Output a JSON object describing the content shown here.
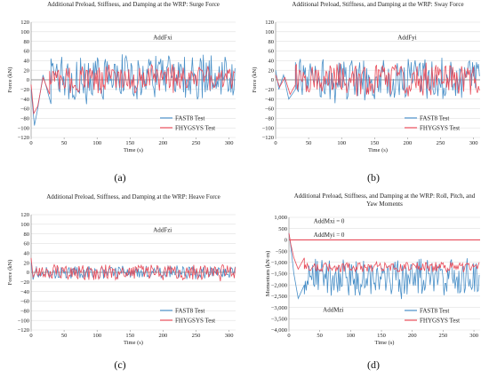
{
  "colors": {
    "fast8": "#4a90c8",
    "fhygsys": "#e84c5a",
    "grid": "#d9d9d9",
    "axis": "#7f7f7f"
  },
  "panel_labels": [
    "(a)",
    "(b)",
    "(c)",
    "(d)"
  ],
  "chart_data": [
    {
      "type": "line",
      "title": "Additional Preload, Stiffness, and Damping at the WRP: Surge Force",
      "title_lines": [
        "Additional Preload, Stiffness, and Damping at the WRP: Surge Force"
      ],
      "xlabel": "Time (s)",
      "ylabel": "Force (kN)",
      "xlim": [
        0,
        310
      ],
      "ylim": [
        -120,
        120
      ],
      "xticks": [
        0,
        50,
        100,
        150,
        200,
        250,
        300
      ],
      "yticks": [
        120,
        100,
        80,
        60,
        40,
        20,
        0,
        -20,
        -40,
        -60,
        -80,
        -100,
        -120
      ],
      "ytick_labels": [
        "120",
        "100",
        "80",
        "60",
        "40",
        "20",
        "0",
        "−20",
        "−40",
        "−60",
        "−80",
        "−100",
        "−120"
      ],
      "annotations": [
        {
          "text": "AddFxi",
          "x": 185,
          "y": 84
        }
      ],
      "legend_position": "bottom-right",
      "series": [
        {
          "name": "FAST8 Test",
          "color": "#4a90c8",
          "x_start": 0,
          "x_end": 310,
          "mean": 5,
          "amp": 45,
          "period": 14,
          "onset": [
            [
              0,
              -20
            ],
            [
              5,
              -95
            ],
            [
              10,
              -60
            ],
            [
              18,
              10
            ],
            [
              30,
              -50
            ]
          ]
        },
        {
          "name": "FHYGSYS Test",
          "color": "#e84c5a",
          "x_start": 0,
          "x_end": 310,
          "mean": 2,
          "amp": 25,
          "period": 12,
          "onset": [
            [
              0,
              -10
            ],
            [
              4,
              -70
            ],
            [
              10,
              -55
            ],
            [
              18,
              5
            ],
            [
              28,
              -30
            ]
          ]
        }
      ]
    },
    {
      "type": "line",
      "title": "Additional Preload, Stiffness, and Damping at the WRP: Sway Force",
      "title_lines": [
        "Additional Preload, Stiffness, and Damping at the WRP: Sway Force"
      ],
      "xlabel": "Time (s)",
      "ylabel": "Force (kN)",
      "xlim": [
        0,
        310
      ],
      "ylim": [
        -120,
        120
      ],
      "xticks": [
        0,
        50,
        100,
        150,
        200,
        250,
        300
      ],
      "yticks": [
        120,
        100,
        80,
        60,
        40,
        20,
        0,
        -20,
        -40,
        -60,
        -80,
        -100,
        -120
      ],
      "ytick_labels": [
        "120",
        "100",
        "80",
        "60",
        "40",
        "20",
        "0",
        "−20",
        "−40",
        "−60",
        "−80",
        "−100",
        "−120"
      ],
      "annotations": [
        {
          "text": "AddFyi",
          "x": 185,
          "y": 84
        }
      ],
      "legend_position": "bottom-right",
      "series": [
        {
          "name": "FAST8 Test",
          "color": "#4a90c8",
          "x_start": 0,
          "x_end": 310,
          "mean": 0,
          "amp": 40,
          "period": 13,
          "onset": [
            [
              0,
              20
            ],
            [
              5,
              -20
            ],
            [
              12,
              10
            ],
            [
              20,
              -40
            ],
            [
              30,
              -20
            ]
          ]
        },
        {
          "name": "FHYGSYS Test",
          "color": "#e84c5a",
          "x_start": 0,
          "x_end": 310,
          "mean": 0,
          "amp": 30,
          "period": 11,
          "onset": [
            [
              0,
              10
            ],
            [
              6,
              -15
            ],
            [
              14,
              5
            ],
            [
              22,
              -30
            ],
            [
              30,
              -10
            ]
          ]
        }
      ]
    },
    {
      "type": "line",
      "title": "Additional Preload, Stiffness, and Damping at the WRP: Heave Force",
      "title_lines": [
        "Additional Preload, Stiffness, and Damping at the WRP: Heave Force"
      ],
      "xlabel": "Time (s)",
      "ylabel": "Force (kN)",
      "xlim": [
        0,
        310
      ],
      "ylim": [
        -120,
        120
      ],
      "xticks": [
        0,
        50,
        100,
        150,
        200,
        250,
        300
      ],
      "yticks": [
        120,
        100,
        80,
        60,
        40,
        20,
        0,
        -20,
        -40,
        -60,
        -80,
        -100,
        -120
      ],
      "ytick_labels": [
        "120",
        "100",
        "80",
        "60",
        "40",
        "20",
        "0",
        "−20",
        "−40",
        "−60",
        "−80",
        "−100",
        "−120"
      ],
      "annotations": [
        {
          "text": "AddFzi",
          "x": 185,
          "y": 84
        }
      ],
      "legend_position": "bottom-right",
      "series": [
        {
          "name": "FAST8 Test",
          "color": "#4a90c8",
          "x_start": 0,
          "x_end": 310,
          "mean": 0,
          "amp": 12,
          "period": 9,
          "onset": [
            [
              0,
              20
            ],
            [
              3,
              -15
            ],
            [
              8,
              10
            ]
          ]
        },
        {
          "name": "FHYGSYS Test",
          "color": "#e84c5a",
          "x_start": 0,
          "x_end": 310,
          "mean": 0,
          "amp": 15,
          "period": 10,
          "onset": [
            [
              0,
              30
            ],
            [
              3,
              -10
            ],
            [
              8,
              5
            ]
          ]
        }
      ]
    },
    {
      "type": "line",
      "title": "Additional Preload, Stiffness, and Damping at the WRP: Roll, Pitch, and Yaw Moments",
      "title_lines": [
        "Additional Preload, Stiffness, and Damping at the WRP: Roll, Pitch, and",
        "Yaw Moments"
      ],
      "xlabel": "Time (s)",
      "ylabel": "Momentum (kN·m)",
      "xlim": [
        0,
        310
      ],
      "ylim": [
        -4000,
        1000
      ],
      "xticks": [
        0,
        50,
        100,
        150,
        200,
        250,
        300
      ],
      "yticks": [
        1000,
        500,
        0,
        -500,
        -1000,
        -1500,
        -2000,
        -2500,
        -3000,
        -3500,
        -4000
      ],
      "ytick_labels": [
        "1,000",
        "500",
        "0",
        "−500",
        "−1,000",
        "−1,500",
        "−2,000",
        "−2,500",
        "−3,000",
        "−3,500",
        "−4,000"
      ],
      "annotations": [
        {
          "text": "AddMxi = 0",
          "x": 40,
          "y": 750
        },
        {
          "text": "AddMyi = 0",
          "x": 40,
          "y": 130
        },
        {
          "text": "AddMzi",
          "x": 55,
          "y": -3200
        }
      ],
      "legend_position": "bottom-right",
      "series": [
        {
          "name": "FAST8 Test",
          "color": "#4a90c8",
          "x_start": 0,
          "x_end": 310,
          "mean": -1700,
          "amp": 800,
          "period": 13,
          "onset": [
            [
              0,
              300
            ],
            [
              3,
              -300
            ],
            [
              8,
              -1500
            ],
            [
              15,
              -2600
            ],
            [
              25,
              -2000
            ]
          ]
        },
        {
          "name": "FHYGSYS Test",
          "color": "#e84c5a",
          "x_start": 0,
          "x_end": 310,
          "mean": -1200,
          "amp": 200,
          "period": 12,
          "onset": [
            [
              0,
              300
            ],
            [
              3,
              -200
            ],
            [
              8,
              -800
            ],
            [
              15,
              -1300
            ],
            [
              25,
              -800
            ]
          ]
        },
        {
          "name": "",
          "color": "#e84c5a",
          "constant": 0
        }
      ]
    }
  ]
}
